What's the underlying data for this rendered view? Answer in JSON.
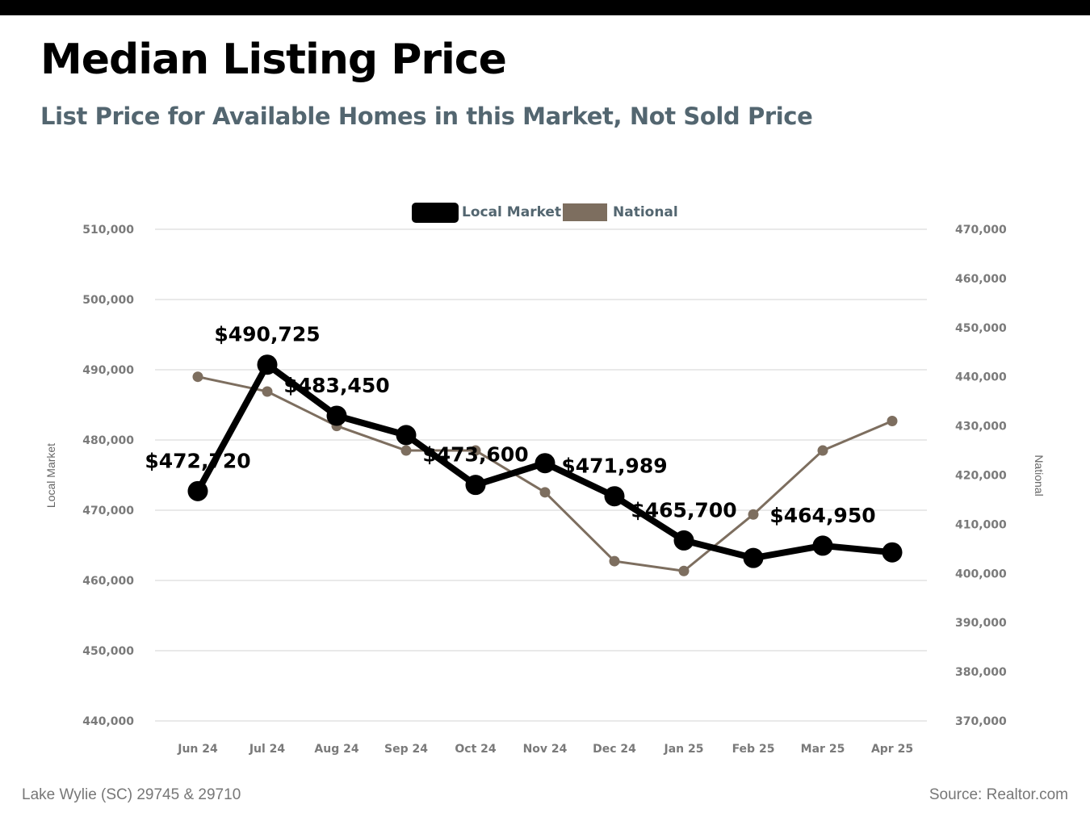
{
  "header": {
    "title": "Median Listing Price",
    "subtitle": "List Price for Available Homes in this Market, Not Sold Price"
  },
  "footer": {
    "location": "Lake Wylie (SC) 29745 & 29710",
    "source": "Source: Realtor.com"
  },
  "colors": {
    "local": "#000000",
    "national": "#7d6e5f",
    "grid": "#d3d3d3",
    "tick_text": "#7a7a7a",
    "legend_text": "#536670"
  },
  "chart_data": {
    "type": "line",
    "categories": [
      "Jun 24",
      "Jul 24",
      "Aug 24",
      "Sep 24",
      "Oct 24",
      "Nov 24",
      "Dec 24",
      "Jan 25",
      "Feb 25",
      "Mar 25",
      "Apr 25"
    ],
    "series": [
      {
        "name": "Local Market",
        "axis": "left",
        "values": [
          472720,
          490725,
          483450,
          480700,
          473600,
          476700,
          471989,
          465700,
          463200,
          464950,
          464000
        ],
        "data_labels": [
          "$472,720",
          "$490,725",
          "$483,450",
          null,
          "$473,600",
          null,
          "$471,989",
          "$465,700",
          null,
          "$464,950",
          null
        ]
      },
      {
        "name": "National",
        "axis": "right",
        "values": [
          440000,
          437000,
          430000,
          425000,
          425000,
          416500,
          402500,
          400500,
          412000,
          425000,
          431000
        ]
      }
    ],
    "y_left": {
      "label": "Local Market",
      "range": [
        440000,
        510000
      ],
      "ticks": [
        "440,000",
        "450,000",
        "460,000",
        "470,000",
        "480,000",
        "490,000",
        "500,000",
        "510,000"
      ]
    },
    "y_right": {
      "label": "National",
      "range": [
        370000,
        470000
      ],
      "ticks": [
        "370,000",
        "380,000",
        "390,000",
        "400,000",
        "410,000",
        "420,000",
        "430,000",
        "440,000",
        "450,000",
        "460,000",
        "470,000"
      ]
    },
    "legend": {
      "position": "top",
      "entries": [
        "Local Market",
        "National"
      ]
    },
    "grid": true
  }
}
